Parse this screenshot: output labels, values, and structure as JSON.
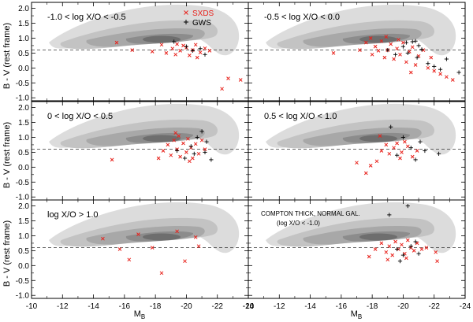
{
  "chart_data": {
    "type": "scatter",
    "title": "",
    "xlabel": "M",
    "xlabel_sub": "B",
    "ylabel": "B - V (rest frame)",
    "xlim": [
      -10,
      -24
    ],
    "ylim": [
      -1.1,
      2.2
    ],
    "xticks": [
      "-10",
      "-12",
      "-14",
      "-16",
      "-18",
      "-20",
      "-22",
      "-24"
    ],
    "yticks": [
      "-1.0",
      "-0.5",
      "0.0",
      "0.5",
      "1.0",
      "1.5",
      "2.0"
    ],
    "reference_line_y": 0.6,
    "legend": [
      {
        "name": "SXDS",
        "marker": "x",
        "color": "#e8221c"
      },
      {
        "name": "GWS",
        "marker": "+",
        "color": "#000000"
      }
    ],
    "background": "grey density contours of normal galaxies",
    "panels": [
      {
        "label": "-1.0 < log X/O < -0.5",
        "sub_label": "",
        "series": [
          {
            "name": "SXDS",
            "points": [
              [
                -15.5,
                0.85
              ],
              [
                -17.8,
                0.55
              ],
              [
                -18.4,
                0.78
              ],
              [
                -18.7,
                0.5
              ],
              [
                -19.1,
                0.65
              ],
              [
                -19.4,
                0.8
              ],
              [
                -19.6,
                0.58
              ],
              [
                -19.8,
                0.75
              ],
              [
                -20.0,
                0.68
              ],
              [
                -20.2,
                0.42
              ],
              [
                -20.4,
                0.6
              ],
              [
                -20.6,
                0.78
              ],
              [
                -20.9,
                0.52
              ],
              [
                -21.2,
                0.66
              ],
              [
                -21.5,
                0.58
              ],
              [
                -19.3,
                0.45
              ],
              [
                -20.7,
                0.35
              ],
              [
                -22.3,
                -0.7
              ],
              [
                -22.7,
                -0.35
              ],
              [
                -23.5,
                -0.4
              ],
              [
                -16.5,
                0.6
              ]
            ]
          },
          {
            "name": "GWS",
            "points": [
              [
                -19.2,
                0.88
              ],
              [
                -20.0,
                0.72
              ],
              [
                -20.4,
                0.58
              ],
              [
                -20.9,
                0.65
              ],
              [
                -21.2,
                0.45
              ]
            ]
          }
        ]
      },
      {
        "label": "-0.5 < log X/O < 0.0",
        "sub_label": "",
        "series": [
          {
            "name": "SXDS",
            "points": [
              [
                -15.5,
                0.5
              ],
              [
                -17.2,
                0.6
              ],
              [
                -17.6,
                0.85
              ],
              [
                -17.9,
                1.0
              ],
              [
                -18.0,
                0.45
              ],
              [
                -18.2,
                0.72
              ],
              [
                -18.4,
                0.58
              ],
              [
                -18.6,
                0.9
              ],
              [
                -18.8,
                0.35
              ],
              [
                -19.0,
                0.6
              ],
              [
                -19.2,
                0.8
              ],
              [
                -19.4,
                0.3
              ],
              [
                -19.6,
                0.65
              ],
              [
                -19.8,
                0.45
              ],
              [
                -20.0,
                0.85
              ],
              [
                -20.2,
                0.2
              ],
              [
                -20.4,
                0.55
              ],
              [
                -20.6,
                0.7
              ],
              [
                -20.8,
                0.1
              ],
              [
                -21.0,
                0.4
              ],
              [
                -21.3,
                0.6
              ],
              [
                -21.6,
                0.0
              ],
              [
                -22.0,
                -0.1
              ],
              [
                -22.4,
                -0.2
              ],
              [
                -22.8,
                -0.3
              ],
              [
                -23.2,
                -0.4
              ],
              [
                -20.5,
                -0.15
              ],
              [
                -21.8,
                0.35
              ],
              [
                -18.9,
                1.05
              ],
              [
                -19.7,
                0.95
              ]
            ]
          },
          {
            "name": "GWS",
            "points": [
              [
                -19.0,
                0.6
              ],
              [
                -19.5,
                0.45
              ],
              [
                -20.0,
                0.72
              ],
              [
                -20.3,
                0.5
              ],
              [
                -20.6,
                0.88
              ],
              [
                -20.9,
                0.35
              ],
              [
                -21.2,
                0.62
              ],
              [
                -21.6,
                0.15
              ],
              [
                -22.0,
                0.05
              ],
              [
                -22.4,
                -0.05
              ],
              [
                -22.8,
                0.3
              ],
              [
                -23.6,
                -0.15
              ],
              [
                -20.8,
                0.9
              ],
              [
                -21.0,
                0.75
              ],
              [
                -20.2,
                0.85
              ]
            ]
          }
        ]
      },
      {
        "label": "0 < log X/O < 0.5",
        "sub_label": "",
        "series": [
          {
            "name": "SXDS",
            "points": [
              [
                -15.2,
                0.25
              ],
              [
                -18.5,
                0.55
              ],
              [
                -18.8,
                0.75
              ],
              [
                -19.0,
                0.4
              ],
              [
                -19.2,
                0.9
              ],
              [
                -19.4,
                0.6
              ],
              [
                -19.5,
                1.05
              ],
              [
                -19.6,
                0.35
              ],
              [
                -19.8,
                0.8
              ],
              [
                -20.0,
                0.5
              ],
              [
                -20.1,
                0.95
              ],
              [
                -20.3,
                0.65
              ],
              [
                -20.4,
                0.3
              ],
              [
                -20.6,
                0.78
              ],
              [
                -20.8,
                0.45
              ],
              [
                -21.0,
                0.9
              ],
              [
                -21.2,
                0.6
              ],
              [
                -19.3,
                1.15
              ],
              [
                -20.2,
                0.2
              ],
              [
                -18.2,
                0.3
              ]
            ]
          },
          {
            "name": "GWS",
            "points": [
              [
                -19.4,
                0.55
              ],
              [
                -19.9,
                0.3
              ],
              [
                -20.3,
                0.7
              ],
              [
                -20.7,
                1.0
              ],
              [
                -21.0,
                1.2
              ],
              [
                -21.2,
                0.5
              ],
              [
                -21.6,
                0.25
              ],
              [
                -21.3,
                0.85
              ],
              [
                -20.5,
                0.45
              ]
            ]
          }
        ]
      },
      {
        "label": "0.5 < log X/O < 1.0",
        "sub_label": "",
        "series": [
          {
            "name": "SXDS",
            "points": [
              [
                -17.0,
                0.15
              ],
              [
                -17.6,
                -0.2
              ],
              [
                -17.9,
                0.05
              ],
              [
                -18.3,
                0.2
              ],
              [
                -18.6,
                0.55
              ],
              [
                -18.9,
                0.75
              ],
              [
                -19.1,
                0.45
              ],
              [
                -19.4,
                0.65
              ],
              [
                -19.6,
                0.8
              ],
              [
                -19.9,
                0.5
              ],
              [
                -20.1,
                0.85
              ],
              [
                -20.3,
                0.7
              ],
              [
                -20.6,
                0.35
              ],
              [
                -20.9,
                0.55
              ],
              [
                -18.5,
                1.05
              ],
              [
                -19.8,
                0.3
              ]
            ]
          },
          {
            "name": "GWS",
            "points": [
              [
                -19.2,
                1.35
              ],
              [
                -20.0,
                1.0
              ],
              [
                -20.5,
                0.65
              ],
              [
                -21.1,
                0.85
              ],
              [
                -21.4,
                0.55
              ],
              [
                -22.3,
                0.45
              ],
              [
                -19.6,
                0.4
              ],
              [
                -20.8,
                0.25
              ]
            ]
          }
        ]
      },
      {
        "label": "log X/O > 1.0",
        "sub_label": "",
        "series": [
          {
            "name": "SXDS",
            "points": [
              [
                -14.6,
                0.9
              ],
              [
                -15.7,
                0.55
              ],
              [
                -16.3,
                0.2
              ],
              [
                -16.9,
                1.05
              ],
              [
                -17.8,
                0.6
              ],
              [
                -18.4,
                -0.25
              ],
              [
                -19.4,
                1.15
              ],
              [
                -19.9,
                0.15
              ],
              [
                -20.6,
                0.95
              ],
              [
                -20.8,
                0.65
              ]
            ]
          },
          {
            "name": "GWS",
            "points": []
          }
        ]
      },
      {
        "label": "COMPTON THICK, NORMAL GAL.",
        "sub_label": "(log X/O < -1.0)",
        "series": [
          {
            "name": "SXDS",
            "points": [
              [
                -17.8,
                0.3
              ],
              [
                -18.2,
                0.55
              ],
              [
                -18.6,
                0.75
              ],
              [
                -18.9,
                0.45
              ],
              [
                -19.1,
                0.65
              ],
              [
                -19.3,
                0.35
              ],
              [
                -19.5,
                0.8
              ],
              [
                -19.7,
                0.55
              ],
              [
                -19.9,
                0.7
              ],
              [
                -20.1,
                0.4
              ],
              [
                -20.3,
                0.85
              ],
              [
                -20.5,
                0.6
              ],
              [
                -20.7,
                0.5
              ],
              [
                -20.9,
                0.75
              ],
              [
                -21.2,
                0.55
              ],
              [
                -21.5,
                0.6
              ],
              [
                -22.1,
                0.45
              ],
              [
                -22.2,
                0.15
              ],
              [
                -19.0,
                0.2
              ],
              [
                -20.2,
                0.25
              ]
            ]
          },
          {
            "name": "GWS",
            "points": [
              [
                -19.1,
                1.7
              ],
              [
                -20.3,
                2.0
              ],
              [
                -19.6,
                0.55
              ],
              [
                -20.0,
                0.35
              ],
              [
                -20.5,
                0.65
              ],
              [
                -21.0,
                0.4
              ],
              [
                -20.8,
                0.8
              ],
              [
                -19.8,
                0.15
              ]
            ]
          }
        ]
      }
    ]
  }
}
